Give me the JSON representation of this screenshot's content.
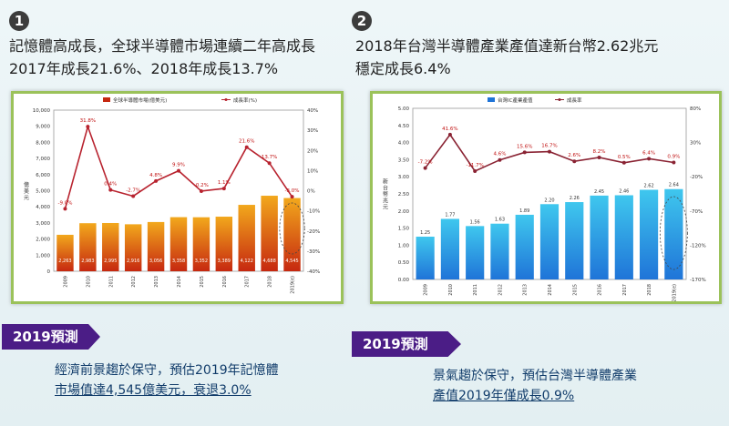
{
  "section1": {
    "number": "1",
    "headline_line1": "記憶體高成長，全球半導體市場連續二年高成長",
    "headline_line2": "2017年成長21.6%、2018年成長13.7%",
    "forecast_label": "2019預測",
    "note_line1": "經濟前景趨於保守，預估2019年記憶體",
    "note_line2": "市場值達4,545億美元，衰退3.0%"
  },
  "section2": {
    "number": "2",
    "headline_line1": "2018年台灣半導體產業產值達新台幣2.62兆元",
    "headline_line2": "穩定成長6.4%",
    "forecast_label": "2019預測",
    "note_line1": "景氣趨於保守，預估台灣半導體產業",
    "note_line2": "產值2019年僅成長0.9%"
  },
  "chart_data": [
    {
      "type": "bar",
      "legend": [
        "全球半導體市場(億美元)",
        "成長率(%)"
      ],
      "ylabel": "億美元",
      "categories": [
        "2009",
        "2010",
        "2011",
        "2012",
        "2013",
        "2014",
        "2015",
        "2016",
        "2017",
        "2018",
        "2019(e)"
      ],
      "series": [
        {
          "name": "全球半導體市場(億美元)",
          "values": [
            2263,
            2983,
            2995,
            2916,
            3056,
            3358,
            3352,
            3389,
            4122,
            4688,
            4545
          ]
        },
        {
          "name": "成長率(%)",
          "values": [
            -9.0,
            31.8,
            0.4,
            -2.7,
            4.8,
            9.9,
            -0.2,
            1.1,
            21.6,
            13.7,
            -3.0
          ]
        }
      ],
      "ylim": [
        0,
        10000
      ],
      "y_ticks": [
        "0",
        "1,000",
        "2,000",
        "3,000",
        "4,000",
        "5,000",
        "6,000",
        "7,000",
        "8,000",
        "9,000",
        "10,000"
      ],
      "y2lim": [
        -40,
        40
      ],
      "y2_ticks": [
        "-40%",
        "-30%",
        "-20%",
        "-10%",
        "0%",
        "10%",
        "20%",
        "30%",
        "40%"
      ],
      "bar_colors": [
        "#c62810",
        "#f2a81c"
      ],
      "line_color": "#b8232f",
      "highlight": "2019(e)"
    },
    {
      "type": "bar",
      "legend": [
        "台灣IC產業產值",
        "成長率"
      ],
      "ylabel": "新台幣兆元",
      "categories": [
        "2009",
        "2010",
        "2011",
        "2012",
        "2013",
        "2014",
        "2015",
        "2016",
        "2017",
        "2018",
        "2019(e)"
      ],
      "series": [
        {
          "name": "台灣IC產業產值",
          "values": [
            1.25,
            1.77,
            1.56,
            1.63,
            1.89,
            2.2,
            2.26,
            2.45,
            2.46,
            2.62,
            2.64
          ]
        },
        {
          "name": "成長率",
          "values": [
            -7.2,
            41.6,
            -11.7,
            4.6,
            15.6,
            16.7,
            2.6,
            8.2,
            0.5,
            6.4,
            0.9
          ]
        }
      ],
      "ylim": [
        0,
        5.0
      ],
      "y_ticks": [
        "0.00",
        "0.50",
        "1.00",
        "1.50",
        "2.00",
        "2.50",
        "3.00",
        "3.50",
        "4.00",
        "4.50",
        "5.00"
      ],
      "y2lim": [
        -170,
        80
      ],
      "y2_ticks": [
        "-170%",
        "-120%",
        "-70%",
        "-20%",
        "30%",
        "80%"
      ],
      "bar_colors": [
        "#1f74d8",
        "#3fc7ee"
      ],
      "line_color": "#8a2333",
      "highlight": "2019(e)"
    }
  ]
}
